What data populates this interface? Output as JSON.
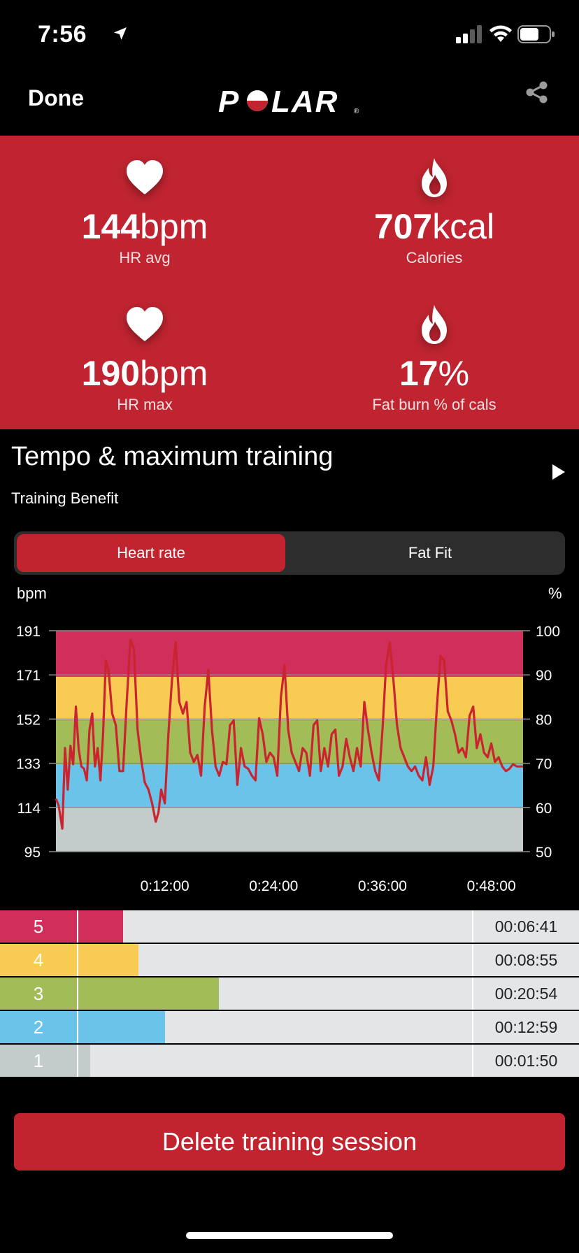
{
  "status_bar": {
    "time": "7:56"
  },
  "nav": {
    "done_label": "Done",
    "logo_text": "POLAR"
  },
  "stats": [
    {
      "value": "144",
      "unit": "bpm",
      "label": "HR avg",
      "icon": "heart-icon"
    },
    {
      "value": "707",
      "unit": "kcal",
      "label": "Calories",
      "icon": "flame-icon"
    },
    {
      "value": "190",
      "unit": "bpm",
      "label": "HR max",
      "icon": "heart-icon"
    },
    {
      "value": "17",
      "unit": "%",
      "label": "Fat burn % of cals",
      "icon": "flame-icon"
    }
  ],
  "training": {
    "title": "Tempo & maximum training",
    "subtitle": "Training Benefit"
  },
  "segmented": {
    "heart_rate": "Heart rate",
    "fat_fit": "Fat Fit",
    "selected": "Heart rate"
  },
  "chart_data": {
    "type": "line",
    "ylabel": "bpm",
    "y2label": "%",
    "ylim": [
      95,
      191
    ],
    "y2lim": [
      50,
      100
    ],
    "yticks": [
      "191",
      "171",
      "152",
      "133",
      "114",
      "95"
    ],
    "y2ticks": [
      "100",
      "90",
      "80",
      "70",
      "60",
      "50"
    ],
    "xticks": [
      "0:12:00",
      "0:24:00",
      "0:36:00",
      "0:48:00"
    ],
    "xtick_minutes": [
      12,
      24,
      36,
      48
    ],
    "xlim_minutes": [
      0,
      51.5
    ],
    "zones": [
      {
        "zone": 5,
        "from": 171,
        "to": 191,
        "color": "#cf2f5a"
      },
      {
        "zone": 4,
        "from": 152,
        "to": 171,
        "color": "#f8cb52"
      },
      {
        "zone": 3,
        "from": 133,
        "to": 152,
        "color": "#a2bc58"
      },
      {
        "zone": 2,
        "from": 114,
        "to": 133,
        "color": "#6ac3e8"
      },
      {
        "zone": 1,
        "from": 95,
        "to": 114,
        "color": "#c4cbcb"
      }
    ],
    "series": [
      {
        "color": "#c9242f",
        "x": [
          0,
          0.3,
          0.7,
          1.0,
          1.3,
          1.6,
          1.9,
          2.2,
          2.5,
          2.8,
          3.1,
          3.4,
          3.7,
          4.0,
          4.3,
          4.6,
          4.9,
          5.2,
          5.5,
          5.8,
          6.2,
          6.6,
          7.0,
          7.4,
          7.8,
          8.2,
          8.6,
          9.0,
          9.4,
          9.8,
          10.2,
          10.6,
          11.0,
          11.3,
          11.6,
          12.0,
          12.4,
          12.8,
          13.2,
          13.6,
          14.0,
          14.4,
          14.8,
          15.2,
          15.6,
          16.0,
          16.4,
          16.8,
          17.2,
          17.6,
          18.0,
          18.4,
          18.8,
          19.2,
          19.6,
          20.0,
          20.4,
          20.8,
          21.2,
          21.6,
          22.0,
          22.4,
          22.8,
          23.2,
          23.6,
          24.0,
          24.4,
          24.8,
          25.2,
          25.6,
          26.0,
          26.4,
          26.8,
          27.2,
          27.6,
          28.0,
          28.4,
          28.8,
          29.2,
          29.6,
          30.0,
          30.4,
          30.8,
          31.2,
          31.6,
          32.0,
          32.4,
          32.8,
          33.2,
          33.6,
          34.0,
          34.4,
          34.8,
          35.2,
          35.6,
          36.0,
          36.4,
          36.8,
          37.2,
          37.6,
          38.0,
          38.4,
          38.8,
          39.2,
          39.6,
          40.0,
          40.4,
          40.8,
          41.2,
          41.6,
          42.0,
          42.4,
          42.8,
          43.2,
          43.6,
          44.0,
          44.4,
          44.8,
          45.2,
          45.6,
          46.0,
          46.4,
          46.8,
          47.2,
          47.6,
          48.0,
          48.4,
          48.8,
          49.2,
          49.6,
          50.0,
          50.4,
          50.8,
          51.2,
          51.5
        ],
        "y": [
          118,
          115,
          105,
          140,
          122,
          141,
          133,
          158,
          140,
          132,
          131,
          126,
          148,
          155,
          132,
          140,
          126,
          146,
          178,
          174,
          155,
          150,
          130,
          130,
          160,
          187,
          183,
          148,
          135,
          125,
          122,
          116,
          108,
          112,
          122,
          116,
          146,
          170,
          186,
          160,
          155,
          160,
          138,
          134,
          137,
          128,
          158,
          174,
          148,
          132,
          128,
          134,
          133,
          150,
          152,
          124,
          140,
          132,
          131,
          128,
          126,
          153,
          146,
          134,
          138,
          136,
          128,
          162,
          176,
          148,
          138,
          134,
          130,
          140,
          138,
          128,
          150,
          152,
          130,
          140,
          132,
          146,
          148,
          128,
          132,
          144,
          136,
          130,
          140,
          132,
          160,
          148,
          138,
          130,
          126,
          148,
          176,
          186,
          170,
          150,
          140,
          136,
          132,
          130,
          132,
          128,
          126,
          136,
          124,
          132,
          158,
          180,
          178,
          156,
          152,
          146,
          138,
          140,
          136,
          154,
          158,
          140,
          146,
          138,
          136,
          142,
          134,
          136,
          132,
          130,
          131,
          133,
          132,
          132,
          132
        ]
      }
    ]
  },
  "zone_table": [
    {
      "zone": "5",
      "time": "00:06:41",
      "color": "#cf2f5a",
      "fraction": 0.114
    },
    {
      "zone": "4",
      "time": "00:08:55",
      "color": "#f8cb52",
      "fraction": 0.152
    },
    {
      "zone": "3",
      "time": "00:20:54",
      "color": "#a2bc58",
      "fraction": 0.357
    },
    {
      "zone": "2",
      "time": "00:12:59",
      "color": "#6ac3e8",
      "fraction": 0.221
    },
    {
      "zone": "1",
      "time": "00:01:50",
      "color": "#c4cbcb",
      "fraction": 0.031
    }
  ],
  "delete_label": "Delete training session"
}
